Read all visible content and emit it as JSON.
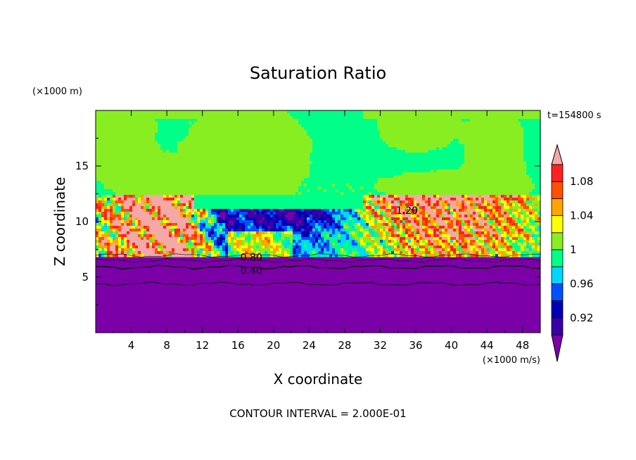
{
  "chart_data": {
    "type": "heatmap",
    "title": "Saturation Ratio",
    "xlabel": "X coordinate",
    "ylabel": "Z coordinate",
    "x_unit": "(×1000 m/s)",
    "y_unit": "(×1000 m)",
    "time_label": "t=154800 s",
    "contour_interval_label": "CONTOUR INTERVAL = 2.000E-01",
    "xlim": [
      0,
      50
    ],
    "ylim": [
      0,
      20
    ],
    "x_ticks": [
      "4",
      "8",
      "12",
      "16",
      "20",
      "24",
      "28",
      "32",
      "36",
      "40",
      "44",
      "48"
    ],
    "y_ticks": [
      "5",
      "10",
      "15"
    ],
    "colorbar": {
      "levels": [
        0.9,
        0.92,
        0.94,
        0.96,
        0.98,
        1.0,
        1.02,
        1.04,
        1.06,
        1.08,
        1.1
      ],
      "tick_labels": [
        "0.92",
        "0.96",
        "1",
        "1.04",
        "1.08"
      ],
      "colors": {
        "below": "#7b00a8",
        "bands": [
          "#3b00a8",
          "#0000b4",
          "#0050ff",
          "#00d6ff",
          "#00ff88",
          "#88ee22",
          "#ffff00",
          "#ffa500",
          "#ff5000",
          "#ff2020"
        ],
        "above": "#f4a8a8"
      }
    },
    "contour_labels": [
      {
        "text": "0.80",
        "x": 17.5,
        "z": 6.8
      },
      {
        "text": "0.40",
        "x": 17.5,
        "z": 5.6
      },
      {
        "text": "1.20",
        "x": 35.0,
        "z": 11.0
      }
    ]
  }
}
